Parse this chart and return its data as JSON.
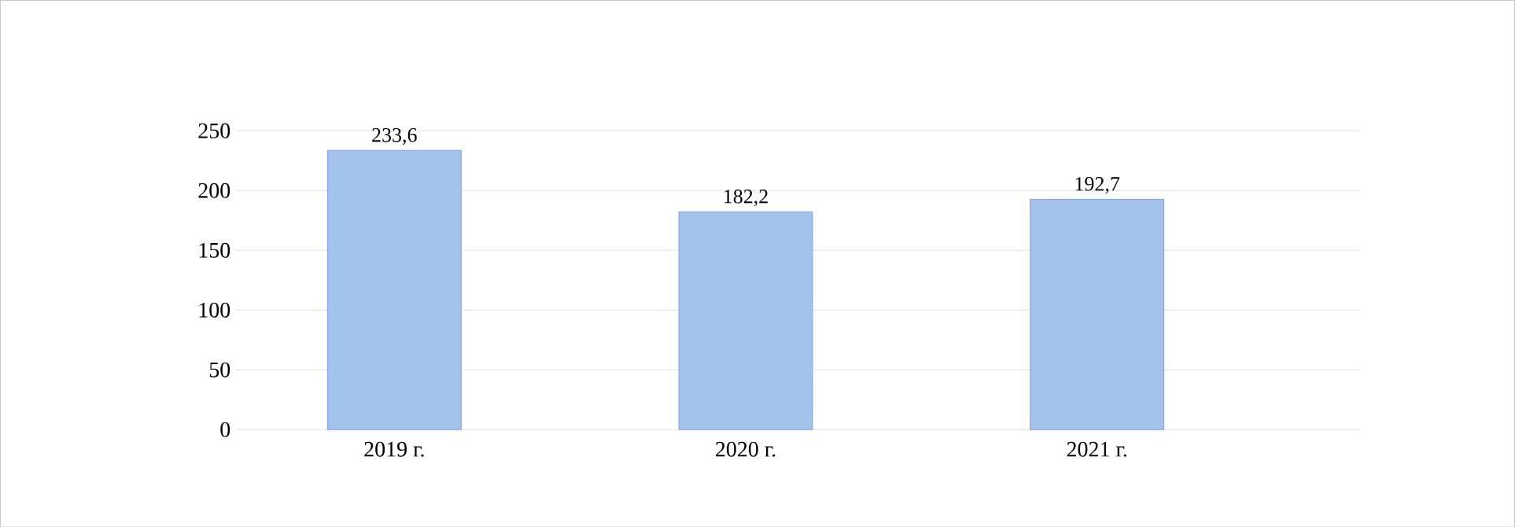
{
  "chart_data": {
    "type": "bar",
    "categories": [
      "2019 г.",
      "2020 г.",
      "2021 г."
    ],
    "values": [
      233.6,
      182.2,
      192.7
    ],
    "value_labels": [
      "233,6",
      "182,2",
      "192,7"
    ],
    "color": "#a3c4e8",
    "ylim": [
      0,
      250
    ],
    "yticks": [
      0,
      50,
      100,
      150,
      200,
      250
    ],
    "grid": "y"
  }
}
